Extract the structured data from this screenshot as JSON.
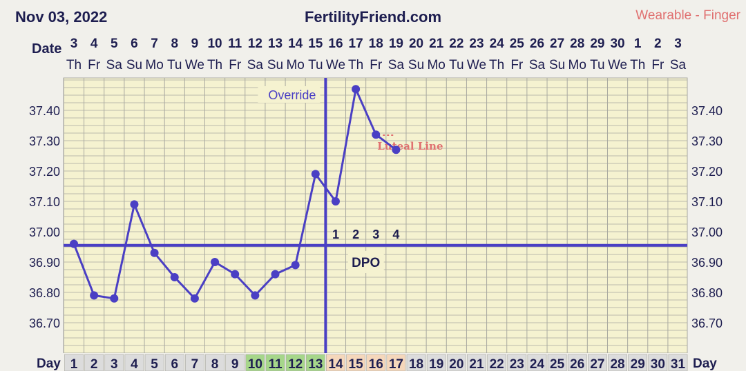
{
  "header": {
    "date": "Nov 03, 2022",
    "site": "FertilityFriend.com",
    "source": "Wearable - Finger"
  },
  "chart_data": {
    "type": "line",
    "title": "",
    "xlabel": "",
    "ylabel": "",
    "row_labels": {
      "date": "Date",
      "day": "Day"
    },
    "dates": [
      "3",
      "4",
      "5",
      "6",
      "7",
      "8",
      "9",
      "10",
      "11",
      "12",
      "13",
      "14",
      "15",
      "16",
      "17",
      "18",
      "19",
      "20",
      "21",
      "22",
      "23",
      "24",
      "25",
      "26",
      "27",
      "28",
      "29",
      "30",
      "1",
      "2",
      "3"
    ],
    "weekdays": [
      "Th",
      "Fr",
      "Sa",
      "Su",
      "Mo",
      "Tu",
      "We",
      "Th",
      "Fr",
      "Sa",
      "Su",
      "Mo",
      "Tu",
      "We",
      "Th",
      "Fr",
      "Sa",
      "Su",
      "Mo",
      "Tu",
      "We",
      "Th",
      "Fr",
      "Sa",
      "Su",
      "Mo",
      "Tu",
      "We",
      "Th",
      "Fr",
      "Sa"
    ],
    "days": [
      "1",
      "2",
      "3",
      "4",
      "5",
      "6",
      "7",
      "8",
      "9",
      "10",
      "11",
      "12",
      "13",
      "14",
      "15",
      "16",
      "17",
      "18",
      "19",
      "20",
      "21",
      "22",
      "23",
      "24",
      "25",
      "26",
      "27",
      "28",
      "29",
      "30",
      "31"
    ],
    "fertile_days": [
      10,
      11,
      12,
      13
    ],
    "luteal_days": [
      14,
      15,
      16,
      17
    ],
    "y_ticks": [
      "36.70",
      "36.80",
      "36.90",
      "37.00",
      "37.10",
      "37.20",
      "37.30",
      "37.40"
    ],
    "ylim": [
      36.595,
      37.51
    ],
    "series": [
      {
        "x": [
          1,
          2,
          3,
          4,
          5,
          6,
          7,
          8,
          9,
          10,
          11,
          12,
          13,
          14,
          15,
          16,
          17
        ],
        "values": [
          36.96,
          36.79,
          36.78,
          37.09,
          36.93,
          36.85,
          36.78,
          36.9,
          36.86,
          36.79,
          36.86,
          36.89,
          37.19,
          37.1,
          37.47,
          37.32,
          37.27
        ]
      }
    ],
    "coverline": {
      "value": 36.955
    },
    "ovulation_day": 13,
    "override_label": "Override",
    "dpo": {
      "label": "DPO",
      "numbers": [
        "1",
        "2",
        "3",
        "4"
      ],
      "start_day": 14
    },
    "luteal_label": "Luteal Line",
    "colors": {
      "line": "#4a3fc4",
      "plot_bg": "#f5f2d0",
      "grid": "#a9a9a0",
      "text": "#1e1e50",
      "fertile": "#a6d68a",
      "luteal": "#f5d7bb",
      "day_default": "#dcdcdc",
      "luteal_text": "#e07070",
      "source_text": "#e07070"
    }
  }
}
